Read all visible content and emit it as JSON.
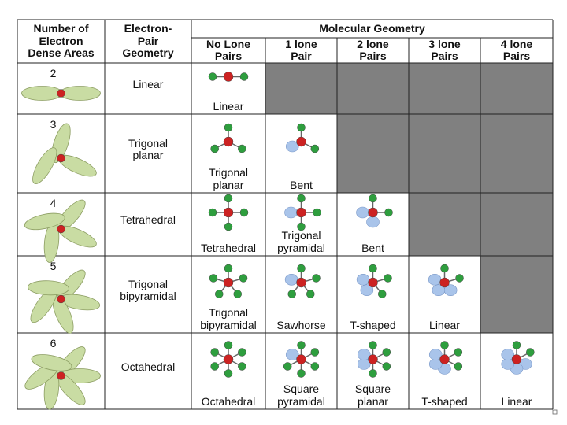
{
  "table": {
    "header": {
      "dense_areas": "Number of\nElectron\nDense Areas",
      "pair_geometry": "Electron-\nPair\nGeometry",
      "molecular_geometry": "Molecular Geometry",
      "lone_pairs": [
        "No Lone\nPairs",
        "1 lone\nPair",
        "2 lone\nPairs",
        "3 lone\nPairs",
        "4 lone\nPairs"
      ]
    },
    "rows": [
      {
        "dense_areas": 2,
        "pair_geometry": "Linear",
        "shapes": [
          "Linear",
          null,
          null,
          null,
          null
        ]
      },
      {
        "dense_areas": 3,
        "pair_geometry": "Trigonal\nplanar",
        "shapes": [
          "Trigonal\nplanar",
          "Bent",
          null,
          null,
          null
        ]
      },
      {
        "dense_areas": 4,
        "pair_geometry": "Tetrahedral",
        "shapes": [
          "Tetrahedral",
          "Trigonal\npyramidal",
          "Bent",
          null,
          null
        ]
      },
      {
        "dense_areas": 5,
        "pair_geometry": "Trigonal\nbipyramidal",
        "shapes": [
          "Trigonal\nbipyramidal",
          "Sawhorse",
          "T-shaped",
          "Linear",
          null
        ]
      },
      {
        "dense_areas": 6,
        "pair_geometry": "Octahedral",
        "shapes": [
          "Octahedral",
          "Square\npyramidal",
          "Square\nplanar",
          "T-shaped",
          "Linear"
        ]
      }
    ]
  }
}
